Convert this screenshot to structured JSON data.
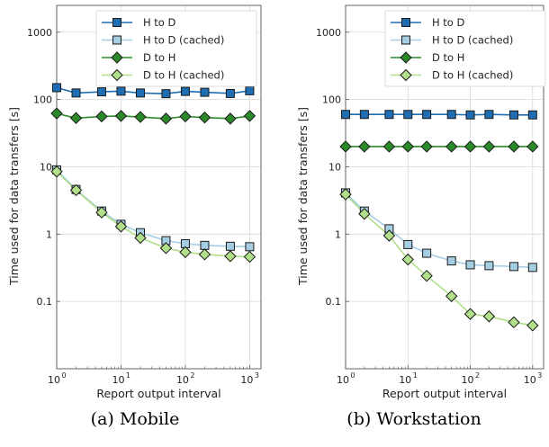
{
  "captions": [
    "(a) Mobile",
    "(b) Workstation"
  ],
  "chart_data": [
    {
      "type": "line",
      "title": "",
      "xlabel": "Report output interval",
      "ylabel": "Time used for data transfers [s]",
      "xscale": "log",
      "yscale": "log",
      "xlim": [
        1,
        1500
      ],
      "ylim": [
        0.01,
        2500
      ],
      "x_ticks": [
        1,
        10,
        100,
        1000
      ],
      "x_tick_labels": [
        "10",
        "10",
        "10",
        "10"
      ],
      "x_tick_exponents": [
        "0",
        "1",
        "2",
        "3"
      ],
      "y_ticks": [
        0.1,
        1,
        10,
        100,
        1000
      ],
      "y_tick_labels": [
        "0.1",
        "1",
        "10",
        "100",
        "1000"
      ],
      "grid": true,
      "legend_position": "top-center",
      "x": [
        1,
        2,
        5,
        10,
        20,
        50,
        100,
        200,
        500,
        1000
      ],
      "series": [
        {
          "name": "H to D",
          "marker": "square",
          "color": "#1f6eb4",
          "values": [
            150,
            125,
            130,
            133,
            125,
            122,
            132,
            128,
            123,
            135
          ]
        },
        {
          "name": "H to D (cached)",
          "marker": "square",
          "color": "#a6cee3",
          "values": [
            9,
            4.6,
            2.2,
            1.4,
            1.05,
            0.8,
            0.72,
            0.68,
            0.66,
            0.65
          ]
        },
        {
          "name": "D to H",
          "marker": "diamond",
          "color": "#2a8a2a",
          "values": [
            62,
            53,
            56,
            57,
            55,
            52,
            56,
            54,
            52,
            57
          ]
        },
        {
          "name": "D to H (cached)",
          "marker": "diamond",
          "color": "#b2df8a",
          "values": [
            8.5,
            4.5,
            2.1,
            1.3,
            0.88,
            0.62,
            0.54,
            0.5,
            0.47,
            0.46
          ]
        }
      ]
    },
    {
      "type": "line",
      "title": "",
      "xlabel": "Report output interval",
      "ylabel": "Time used for data transfers [s]",
      "xscale": "log",
      "yscale": "log",
      "xlim": [
        1,
        1500
      ],
      "ylim": [
        0.01,
        2500
      ],
      "x_ticks": [
        1,
        10,
        100,
        1000
      ],
      "x_tick_labels": [
        "10",
        "10",
        "10",
        "10"
      ],
      "x_tick_exponents": [
        "0",
        "1",
        "2",
        "3"
      ],
      "y_ticks": [
        0.1,
        1,
        10,
        100,
        1000
      ],
      "y_tick_labels": [
        "0.1",
        "1",
        "10",
        "100",
        "1000"
      ],
      "grid": true,
      "legend_position": "top-center",
      "x": [
        1,
        2,
        5,
        10,
        20,
        50,
        100,
        200,
        500,
        1000
      ],
      "series": [
        {
          "name": "H to D",
          "marker": "square",
          "color": "#1f6eb4",
          "values": [
            60,
            60,
            60,
            60,
            60,
            60,
            59,
            60,
            59,
            59
          ]
        },
        {
          "name": "H to D (cached)",
          "marker": "square",
          "color": "#a6cee3",
          "values": [
            4.1,
            2.2,
            1.2,
            0.7,
            0.52,
            0.4,
            0.35,
            0.34,
            0.33,
            0.32
          ]
        },
        {
          "name": "D to H",
          "marker": "diamond",
          "color": "#2a8a2a",
          "values": [
            20,
            20,
            20,
            20,
            20,
            20,
            20,
            20,
            20,
            20
          ]
        },
        {
          "name": "D to H (cached)",
          "marker": "diamond",
          "color": "#b2df8a",
          "values": [
            3.9,
            2.0,
            0.95,
            0.42,
            0.24,
            0.12,
            0.065,
            0.06,
            0.049,
            0.044
          ]
        }
      ]
    }
  ]
}
